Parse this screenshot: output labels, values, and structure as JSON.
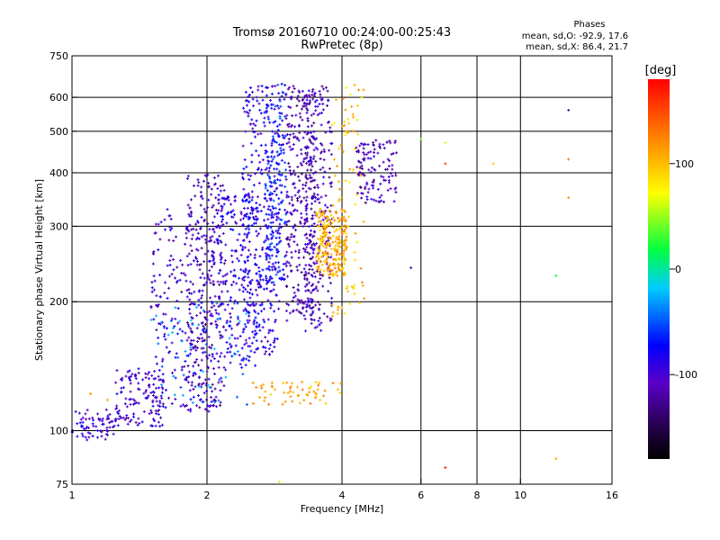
{
  "chart_data": {
    "type": "scatter",
    "title": "Tromsø 20160710 00:24:00-00:25:43",
    "subtitle": "RwPretec (8p)",
    "xlabel": "Frequency [MHz]",
    "ylabel": "Stationary phase Virtual Height [km]",
    "x_scale": "log",
    "y_scale": "log",
    "xlim": [
      1,
      16
    ],
    "ylim": [
      75,
      750
    ],
    "x_ticks": [
      1,
      2,
      4,
      6,
      8,
      10,
      16
    ],
    "y_ticks": [
      75,
      100,
      200,
      300,
      400,
      500,
      600,
      750
    ],
    "grid": true,
    "stats": {
      "heading": "Phases",
      "line_o": "mean, sd,O: -92.9, 17.6",
      "line_x": "mean, sd,X: 86.4, 21.7"
    },
    "colorbar": {
      "label": "[deg]",
      "range": [
        -180,
        180
      ],
      "ticks": [
        100,
        0,
        -100
      ],
      "colormap": "rainbow"
    },
    "clusters": [
      {
        "x": [
          1.0,
          1.25
        ],
        "y": [
          95,
          112
        ],
        "phase": -100,
        "n": 70
      },
      {
        "x": [
          1.25,
          1.6
        ],
        "y": [
          102,
          140
        ],
        "phase": -100,
        "n": 130
      },
      {
        "x": [
          1.5,
          2.1
        ],
        "y": [
          110,
          330
        ],
        "phase": -100,
        "n": 240
      },
      {
        "x": [
          1.8,
          2.2
        ],
        "y": [
          112,
          400
        ],
        "phase": -110,
        "n": 260
      },
      {
        "x": [
          2.1,
          2.6
        ],
        "y": [
          140,
          360
        ],
        "phase": -90,
        "n": 240
      },
      {
        "x": [
          2.4,
          2.9
        ],
        "y": [
          150,
          640
        ],
        "phase": -90,
        "n": 300
      },
      {
        "x": [
          2.7,
          3.0
        ],
        "y": [
          220,
          650
        ],
        "phase": -70,
        "n": 200
      },
      {
        "x": [
          3.0,
          3.5
        ],
        "y": [
          180,
          650
        ],
        "phase": -115,
        "n": 300
      },
      {
        "x": [
          3.3,
          3.8
        ],
        "y": [
          170,
          640
        ],
        "phase": -110,
        "n": 260
      },
      {
        "x": [
          3.5,
          4.1
        ],
        "y": [
          230,
          330
        ],
        "phase": 110,
        "n": 220
      },
      {
        "x": [
          3.8,
          4.5
        ],
        "y": [
          180,
          650
        ],
        "phase": 100,
        "n": 100
      },
      {
        "x": [
          4.3,
          5.3
        ],
        "y": [
          340,
          480
        ],
        "phase": -110,
        "n": 120
      },
      {
        "x": [
          2.5,
          4.0
        ],
        "y": [
          115,
          130
        ],
        "phase": 110,
        "n": 60
      },
      {
        "x": [
          1.5,
          2.5
        ],
        "y": [
          115,
          200
        ],
        "phase": -40,
        "n": 60
      }
    ],
    "outliers": [
      {
        "x": 6.8,
        "y": 470,
        "phase": 60
      },
      {
        "x": 6.8,
        "y": 420,
        "phase": 150
      },
      {
        "x": 6.8,
        "y": 82,
        "phase": 170
      },
      {
        "x": 8.7,
        "y": 420,
        "phase": 100
      },
      {
        "x": 12.0,
        "y": 230,
        "phase": 20
      },
      {
        "x": 12.8,
        "y": 560,
        "phase": -120
      },
      {
        "x": 12.8,
        "y": 430,
        "phase": 130
      },
      {
        "x": 12.8,
        "y": 350,
        "phase": 120
      },
      {
        "x": 12.0,
        "y": 86,
        "phase": 110
      },
      {
        "x": 6.0,
        "y": 480,
        "phase": 40
      },
      {
        "x": 5.7,
        "y": 240,
        "phase": -120
      },
      {
        "x": 1.2,
        "y": 118,
        "phase": 110
      },
      {
        "x": 1.1,
        "y": 122,
        "phase": 120
      },
      {
        "x": 2.9,
        "y": 76,
        "phase": 60
      }
    ]
  }
}
